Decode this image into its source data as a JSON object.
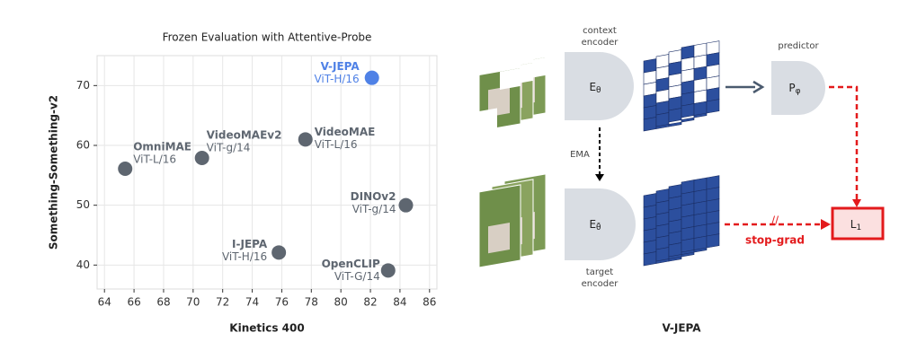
{
  "chart_data": {
    "type": "scatter",
    "title": "Frozen Evaluation with Attentive-Probe",
    "xlabel": "Kinetics 400",
    "ylabel": "Something-Something-v2",
    "labels": [
      "V-JEPA",
      "VideoMAE",
      "VideoMAEv2",
      "OmniMAE",
      "DINOv2",
      "I-JEPA",
      "OpenCLIP"
    ],
    "sublabels": [
      "ViT-H/16",
      "ViT-L/16",
      "ViT-g/14",
      "ViT-L/16",
      "ViT-g/14",
      "ViT-H/16",
      "ViT-G/14"
    ],
    "x": [
      82.1,
      77.6,
      70.6,
      65.4,
      84.4,
      75.8,
      83.2
    ],
    "y": [
      71.3,
      61.0,
      57.9,
      56.1,
      50.0,
      42.1,
      39.1
    ],
    "colors": [
      "#4f81e6",
      "#5e6670",
      "#5e6670",
      "#5e6670",
      "#5e6670",
      "#5e6670",
      "#5e6670"
    ],
    "xlim": [
      63.5,
      86.5
    ],
    "ylim": [
      36,
      75
    ],
    "xticks": [
      64,
      66,
      68,
      70,
      72,
      74,
      76,
      78,
      80,
      82,
      84,
      86
    ],
    "yticks": [
      40,
      50,
      60,
      70
    ],
    "grid": true
  },
  "diagram": {
    "title": "V-JEPA",
    "context_encoder_label": [
      "context",
      "encoder"
    ],
    "target_encoder_label": [
      "target",
      "encoder"
    ],
    "predictor_label": "predictor",
    "context_encoder_symbol": {
      "base": "E",
      "sub": "θ"
    },
    "target_encoder_symbol": {
      "base": "E",
      "sub": "θ̄"
    },
    "predictor_symbol": {
      "base": "P",
      "sub": "φ"
    },
    "loss_symbol": {
      "base": "L",
      "sub": "1"
    },
    "ema_label": "EMA",
    "stop_grad_label": "stop-grad",
    "stop_grad_mark": "//"
  }
}
